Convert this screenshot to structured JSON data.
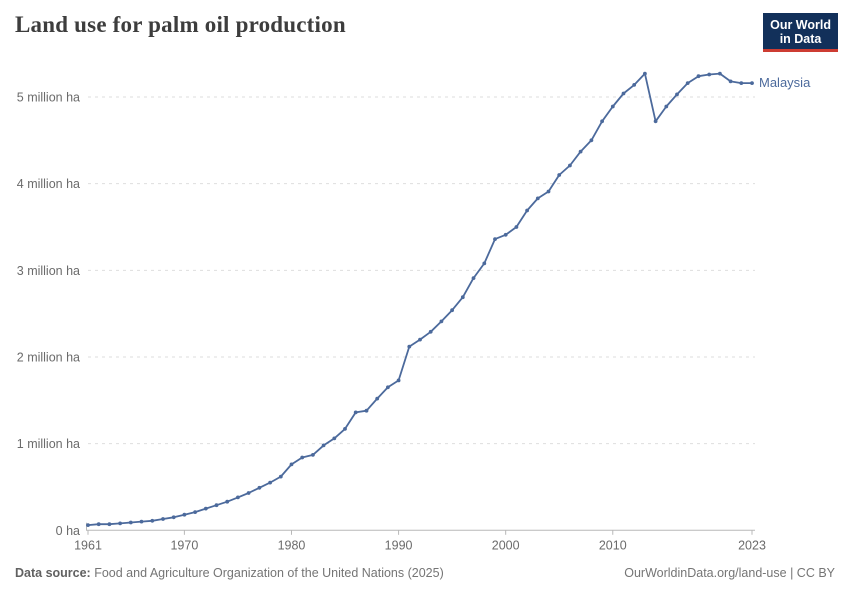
{
  "header": {
    "title": "Land use for palm oil production",
    "logo": {
      "line1": "Our World",
      "line2": "in Data"
    }
  },
  "chart_data": {
    "type": "line",
    "title": "Land use for palm oil production",
    "xlabel": "",
    "ylabel": "",
    "unit": "ha",
    "xlim": [
      1961,
      2023
    ],
    "ylim": [
      0,
      5.3
    ],
    "grid": "horizontal-dashed",
    "legend": "end-of-line-label",
    "x_ticks": [
      1961,
      1970,
      1980,
      1990,
      2000,
      2010,
      2023
    ],
    "y_ticks": [
      {
        "value": 0,
        "label": "0 ha"
      },
      {
        "value": 1,
        "label": "1 million ha"
      },
      {
        "value": 2,
        "label": "2 million ha"
      },
      {
        "value": 3,
        "label": "3 million ha"
      },
      {
        "value": 4,
        "label": "4 million ha"
      },
      {
        "value": 5,
        "label": "5 million ha"
      }
    ],
    "series": [
      {
        "name": "Malaysia",
        "color": "#4c6a9c",
        "unit": "million ha",
        "x": [
          1961,
          1962,
          1963,
          1964,
          1965,
          1966,
          1967,
          1968,
          1969,
          1970,
          1971,
          1972,
          1973,
          1974,
          1975,
          1976,
          1977,
          1978,
          1979,
          1980,
          1981,
          1982,
          1983,
          1984,
          1985,
          1986,
          1987,
          1988,
          1989,
          1990,
          1991,
          1992,
          1993,
          1994,
          1995,
          1996,
          1997,
          1998,
          1999,
          2000,
          2001,
          2002,
          2003,
          2004,
          2005,
          2006,
          2007,
          2008,
          2009,
          2010,
          2011,
          2012,
          2013,
          2014,
          2015,
          2016,
          2017,
          2018,
          2019,
          2020,
          2021,
          2022,
          2023
        ],
        "values": [
          0.06,
          0.07,
          0.07,
          0.08,
          0.09,
          0.1,
          0.11,
          0.13,
          0.15,
          0.18,
          0.21,
          0.25,
          0.29,
          0.33,
          0.38,
          0.43,
          0.49,
          0.55,
          0.62,
          0.76,
          0.84,
          0.87,
          0.98,
          1.06,
          1.17,
          1.36,
          1.38,
          1.52,
          1.65,
          1.73,
          2.12,
          2.2,
          2.29,
          2.41,
          2.54,
          2.69,
          2.91,
          3.08,
          3.36,
          3.41,
          3.5,
          3.69,
          3.83,
          3.91,
          4.1,
          4.21,
          4.37,
          4.5,
          4.72,
          4.89,
          5.04,
          5.14,
          5.27,
          4.72,
          4.89,
          5.03,
          5.16,
          5.24,
          5.26,
          5.27,
          5.18,
          5.16,
          5.16
        ]
      }
    ]
  },
  "footer": {
    "source_label": "Data source:",
    "source_text": "Food and Agriculture Organization of the United Nations (2025)",
    "link_text": "OurWorldinData.org/land-use",
    "license_suffix": " | CC BY"
  },
  "colors": {
    "line": "#4c6a9c",
    "grid": "#dedede",
    "axis": "#b8b8b8",
    "tick_text": "#6b6b6b",
    "title_text": "#3d3d3d",
    "logo_bg": "#12305a",
    "logo_red": "#cd3c32"
  }
}
